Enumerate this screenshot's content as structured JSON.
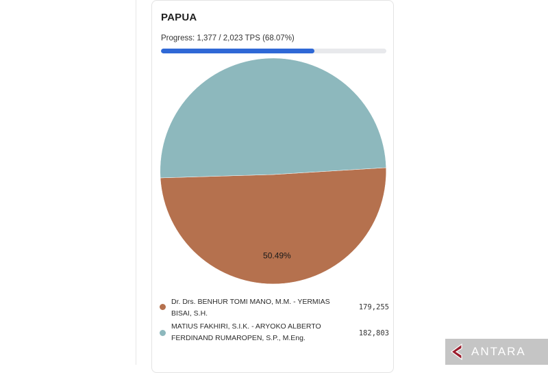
{
  "card": {
    "title": "PAPUA",
    "progress_text": "Progress: 1,377 / 2,023 TPS (68.07%)",
    "progress_fraction": 0.6807
  },
  "chart_data": {
    "type": "pie",
    "slices": [
      {
        "label": "Dr. Drs. BENHUR TOMI MANO, M.M. - YERMIAS BISAI, S.H.",
        "value": 179255,
        "percent_label": "49.51%",
        "color": "#b5714e"
      },
      {
        "label": "MATIUS FAKHIRI, S.I.K. - ARYOKO ALBERTO FERDINAND RUMAROPEN, S.P., M.Eng.",
        "value": 182803,
        "percent_label": "50.49%",
        "color": "#8db8bd"
      }
    ],
    "legend": [
      {
        "name": "Dr. Drs. BENHUR TOMI MANO, M.M. - YERMIAS BISAI, S.H.",
        "value_text": "179,255",
        "color": "#b5714e"
      },
      {
        "name": "MATIUS FAKHIRI, S.I.K. - ARYOKO ALBERTO FERDINAND RUMAROPEN, S.P., M.Eng.",
        "value_text": "182,803",
        "color": "#8db8bd"
      }
    ],
    "legend_placement": "bottom"
  },
  "watermark": {
    "text": "ANTARA",
    "icon": "antara-logo-icon",
    "color": "#9b1c2c"
  }
}
